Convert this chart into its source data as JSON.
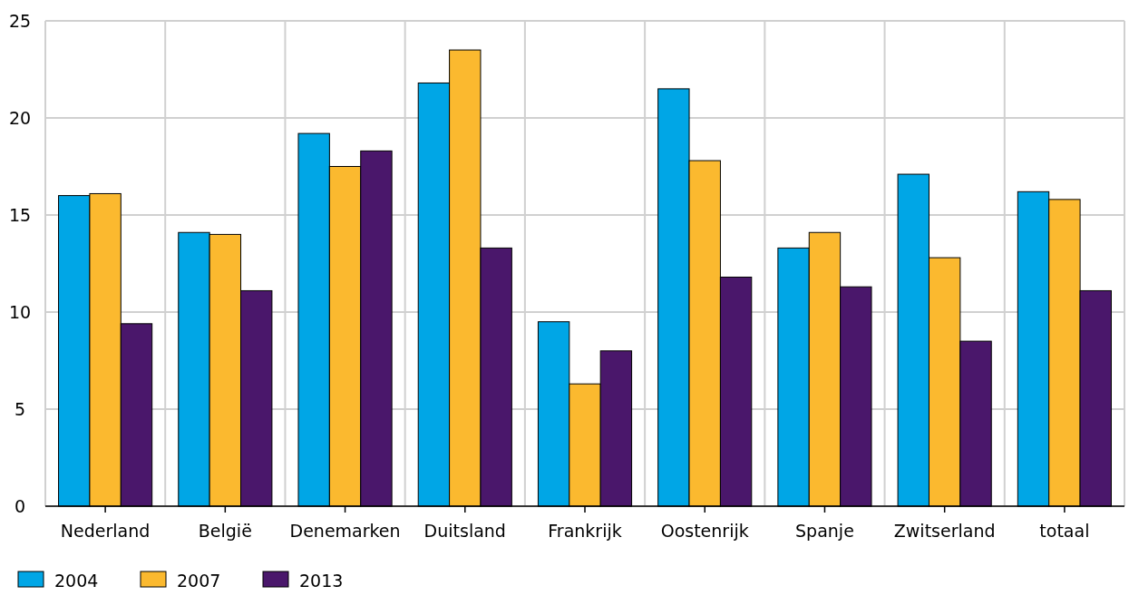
{
  "chart_data": {
    "type": "bar",
    "categories": [
      "Nederland",
      "België",
      "Denemarken",
      "Duitsland",
      "Frankrijk",
      "Oostenrijk",
      "Spanje",
      "Zwitserland",
      "totaal"
    ],
    "series": [
      {
        "name": "2004",
        "color": "#00a6e6",
        "values": [
          16.0,
          14.1,
          19.2,
          21.8,
          9.5,
          21.5,
          13.3,
          17.1,
          16.2
        ]
      },
      {
        "name": "2007",
        "color": "#fbb92f",
        "values": [
          16.1,
          14.0,
          17.5,
          23.5,
          6.3,
          17.8,
          14.1,
          12.8,
          15.8
        ]
      },
      {
        "name": "2013",
        "color": "#4a176b",
        "values": [
          9.4,
          11.1,
          18.3,
          13.3,
          8.0,
          11.8,
          11.3,
          8.5,
          11.1
        ]
      }
    ],
    "ylim": [
      0,
      25
    ],
    "yticks": [
      0,
      5,
      10,
      15,
      20,
      25
    ],
    "grid": true,
    "legend": "bottom left"
  }
}
